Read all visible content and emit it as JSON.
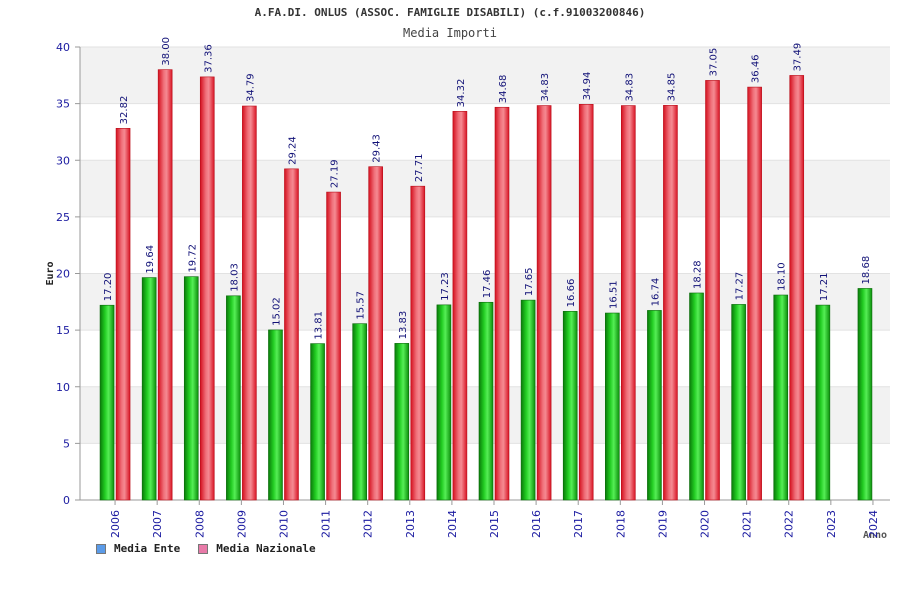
{
  "chart_data": {
    "type": "bar",
    "title": "A.FA.DI. ONLUS (ASSOC. FAMIGLIE DISABILI) (c.f.91003200846)",
    "subtitle": "Media Importi",
    "xlabel": "Anno",
    "ylabel": "Euro",
    "ylim": [
      0,
      40
    ],
    "yticks": [
      0,
      5,
      10,
      15,
      20,
      25,
      30,
      35,
      40
    ],
    "categories": [
      "2006",
      "2007",
      "2008",
      "2009",
      "2010",
      "2011",
      "2012",
      "2013",
      "2014",
      "2015",
      "2016",
      "2017",
      "2018",
      "2019",
      "2020",
      "2021",
      "2022",
      "2023",
      "2024"
    ],
    "series": [
      {
        "name": "Media Ente",
        "values": [
          17.2,
          19.64,
          19.72,
          18.03,
          15.02,
          13.81,
          15.57,
          13.83,
          17.23,
          17.46,
          17.65,
          16.66,
          16.51,
          16.74,
          18.28,
          17.27,
          18.1,
          17.21,
          18.68
        ],
        "labels": [
          "17.20",
          "19.64",
          "19.72",
          "18.03",
          "15.02",
          "13.81",
          "15.57",
          "13.83",
          "17.23",
          "17.46",
          "17.65",
          "16.66",
          "16.51",
          "16.74",
          "18.28",
          "17.27",
          "18.10",
          "17.21",
          "18.68"
        ],
        "color": "#11aa11"
      },
      {
        "name": "Media Nazionale",
        "values": [
          32.82,
          38.0,
          37.36,
          34.79,
          29.24,
          27.19,
          29.43,
          27.71,
          34.32,
          34.68,
          34.83,
          34.94,
          34.83,
          34.85,
          37.05,
          36.46,
          37.49,
          null,
          null
        ],
        "labels": [
          "32.82",
          "38.00",
          "37.36",
          "34.79",
          "29.24",
          "27.19",
          "29.43",
          "27.71",
          "34.32",
          "34.68",
          "34.83",
          "34.94",
          "34.83",
          "34.85",
          "37.05",
          "36.46",
          "37.49",
          null,
          null
        ],
        "color": "#e81c2c"
      }
    ],
    "legend": [
      {
        "label": "Media Ente",
        "color": "#5b9be8"
      },
      {
        "label": "Media Nazionale",
        "color": "#e87aa8"
      }
    ],
    "legend_position": "bottom-left",
    "grid": true
  }
}
